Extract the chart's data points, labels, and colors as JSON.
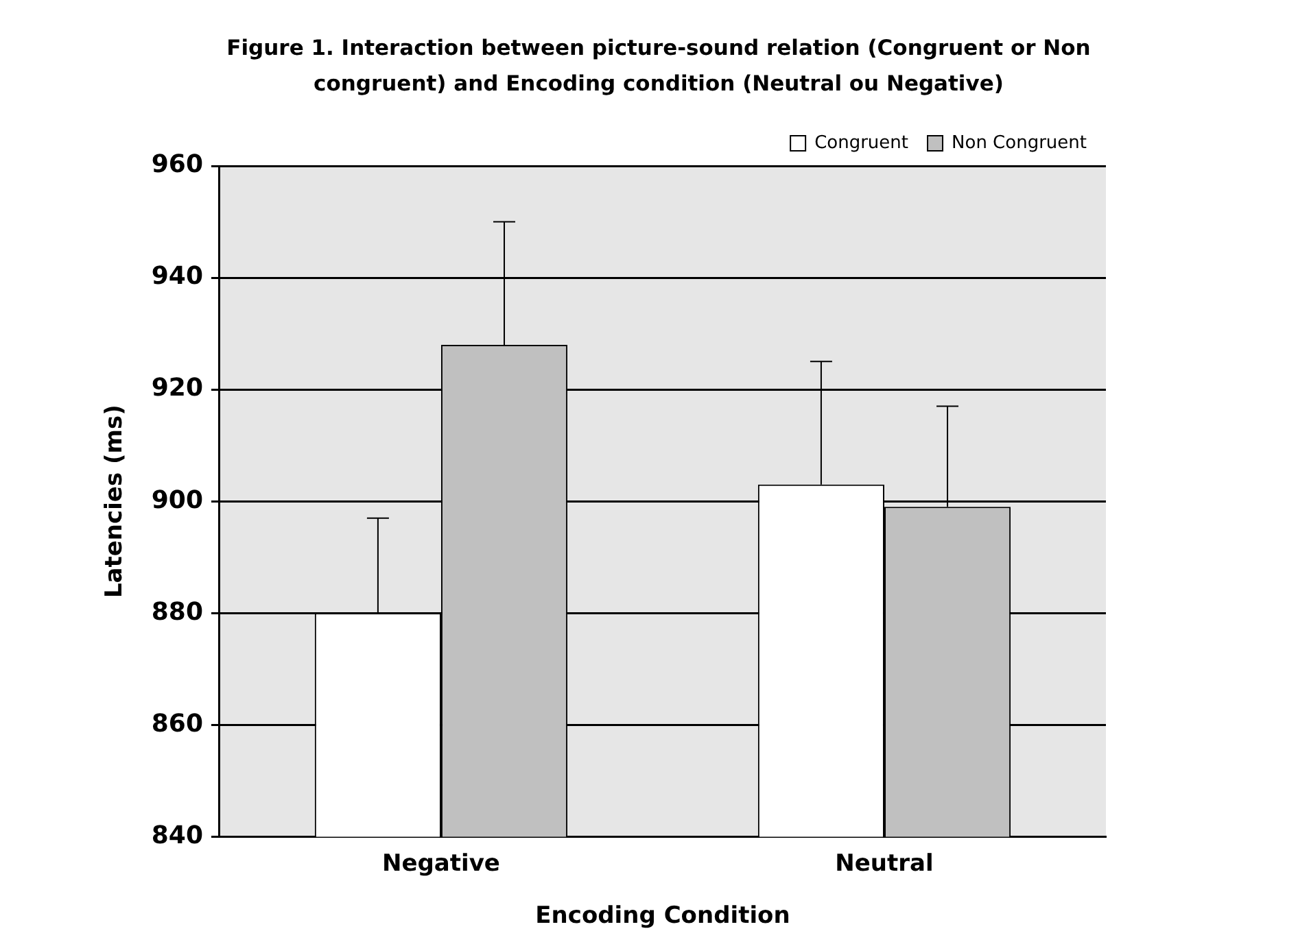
{
  "chart_data": {
    "type": "bar",
    "title": "Figure 1. Interaction between picture-sound relation (Congruent or Non congruent) and Encoding condition (Neutral ou Negative)",
    "xlabel": "Encoding Condition",
    "ylabel": "Latencies (ms)",
    "categories": [
      "Negative",
      "Neutral"
    ],
    "series": [
      {
        "name": "Congruent",
        "color": "#ffffff",
        "values": [
          880,
          903
        ],
        "errors": [
          [
            880,
            897
          ],
          [
            903,
            925
          ]
        ]
      },
      {
        "name": "Non Congruent",
        "color": "#c0c0c0",
        "values": [
          928,
          899
        ],
        "errors": [
          [
            928,
            950
          ],
          [
            899,
            917
          ]
        ]
      }
    ],
    "ylim": [
      840,
      960
    ],
    "yticks": [
      840,
      860,
      880,
      900,
      920,
      940,
      960
    ],
    "grid": "y",
    "legend": "top right"
  }
}
